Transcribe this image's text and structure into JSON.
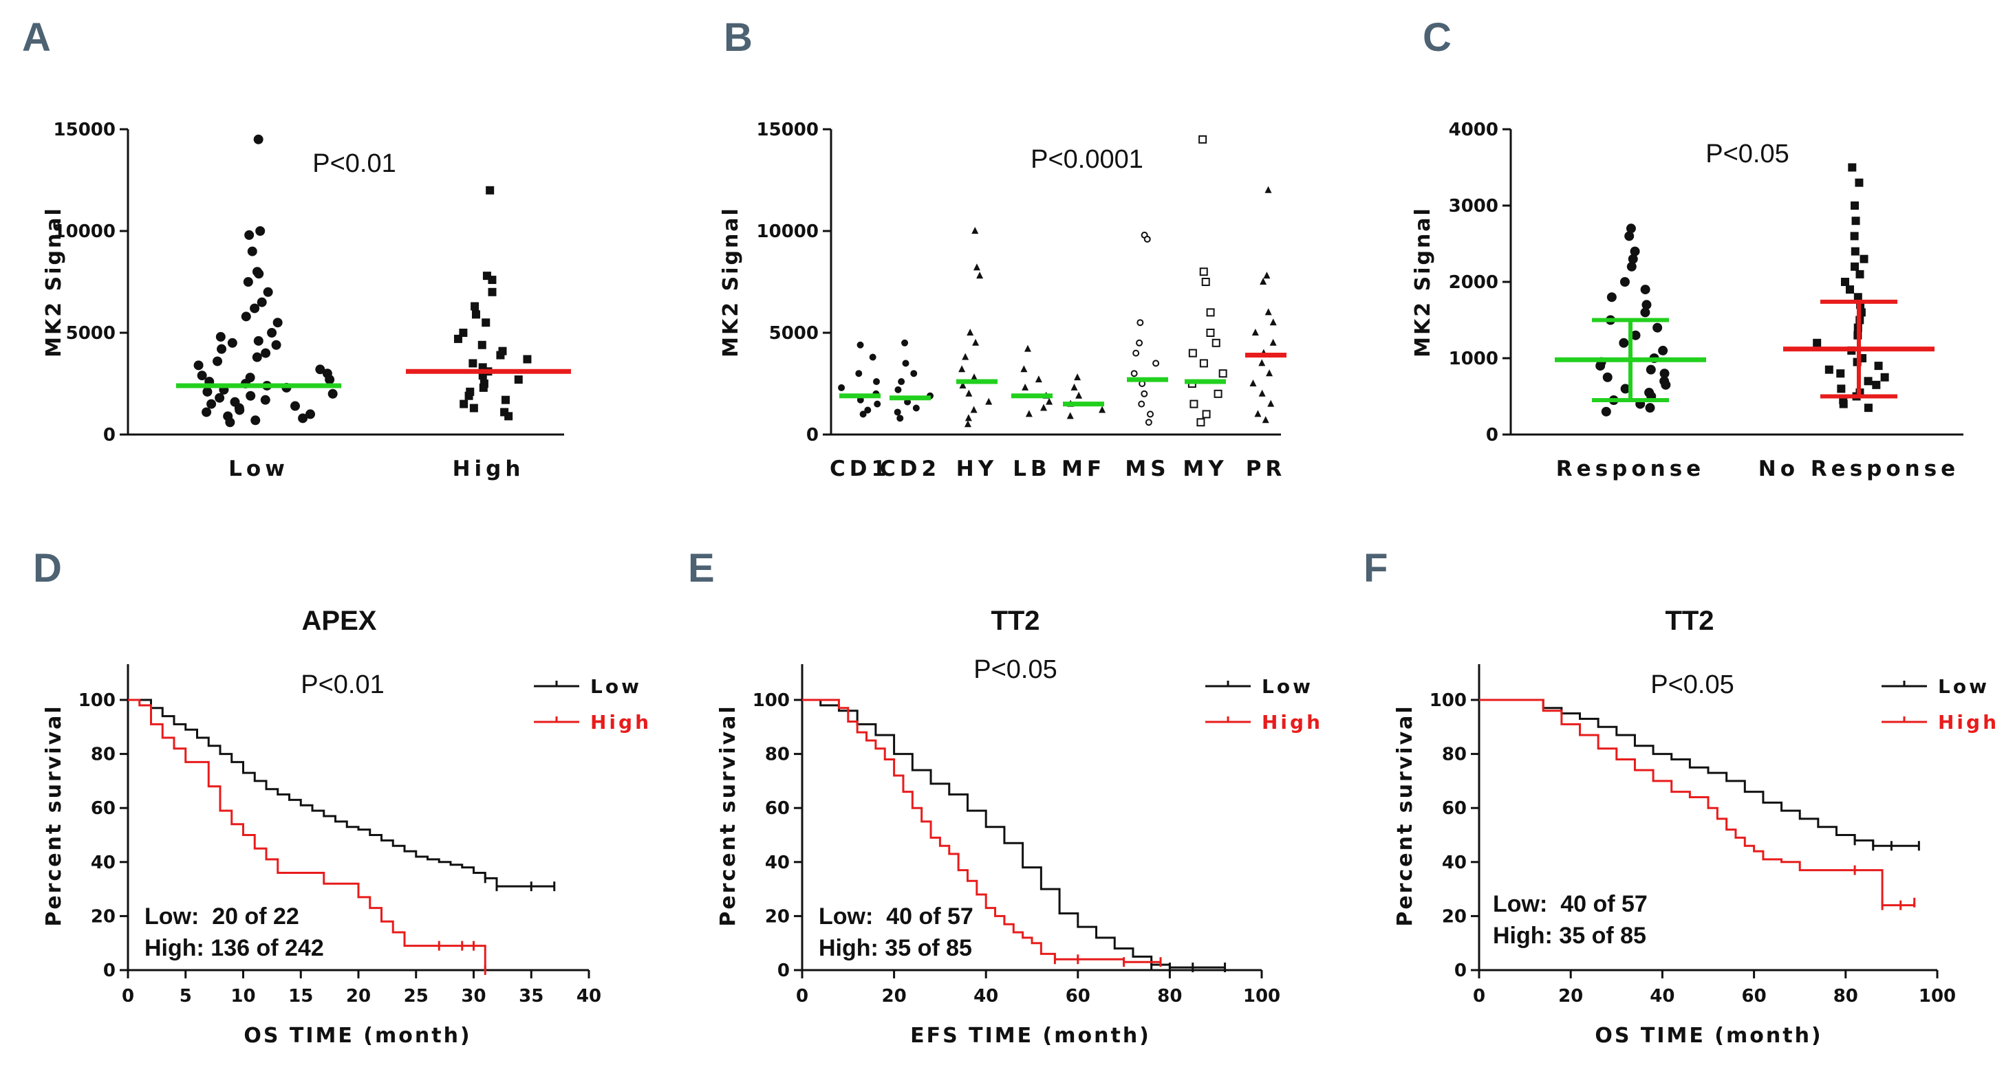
{
  "colors": {
    "black": "#111111",
    "green": "#22d01e",
    "red": "#e81c1c",
    "panel_label": "#4d6272"
  },
  "chart_data": [
    {
      "panel": "A",
      "type": "scatter",
      "ylabel": "MK2 Signal",
      "ylim": [
        0,
        15000
      ],
      "yticks": [
        "0",
        "5000",
        "10000",
        "15000"
      ],
      "p_value": "P<0.01",
      "categories": [
        "Low",
        "High"
      ],
      "means": [
        2400,
        3100
      ],
      "mean_colors": [
        "#22d01e",
        "#e81c1c"
      ],
      "points": [
        [
          14500,
          10000,
          9800,
          9000,
          8000,
          7900,
          7500,
          7000,
          6500,
          6200,
          5800,
          5500,
          5000,
          4800,
          4600,
          4500,
          4400,
          4200,
          4000,
          3800,
          3600,
          3400,
          3200,
          3000,
          2900,
          2800,
          2700,
          2600,
          2500,
          2400,
          2300,
          2200,
          2100,
          2000,
          1900,
          1800,
          1700,
          1600,
          1500,
          1400,
          1300,
          1200,
          1100,
          1000,
          900,
          800,
          700,
          600
        ],
        [
          12000,
          7800,
          7600,
          7000,
          6300,
          5900,
          5500,
          5000,
          4700,
          4400,
          4100,
          3900,
          3700,
          3500,
          3300,
          3100,
          2900,
          2700,
          2500,
          2300,
          2100,
          1900,
          1700,
          1500,
          1300,
          1100,
          900
        ]
      ]
    },
    {
      "panel": "B",
      "type": "scatter",
      "ylabel": "MK2 Signal",
      "ylim": [
        0,
        15000
      ],
      "yticks": [
        "0",
        "5000",
        "10000",
        "15000"
      ],
      "p_value": "P<0.0001",
      "categories": [
        "CD1",
        "CD2",
        "HY",
        "LB",
        "MF",
        "MS",
        "MY",
        "PR"
      ],
      "means": [
        1900,
        1800,
        2600,
        1900,
        1500,
        2700,
        2600,
        3900
      ],
      "mean_colors": [
        "#22d01e",
        "#22d01e",
        "#22d01e",
        "#22d01e",
        "#22d01e",
        "#22d01e",
        "#22d01e",
        "#e81c1c"
      ],
      "points": [
        [
          4400,
          3800,
          3000,
          2600,
          2300,
          2000,
          1700,
          1500,
          1200,
          1000
        ],
        [
          4500,
          3500,
          3000,
          2600,
          2200,
          1900,
          1600,
          1300,
          1100,
          800
        ],
        [
          10000,
          8200,
          7800,
          5000,
          4500,
          3800,
          3200,
          2800,
          2400,
          2000,
          1600,
          1200,
          800,
          500
        ],
        [
          4200,
          3200,
          2700,
          2300,
          1900,
          1600,
          1300,
          1000
        ],
        [
          2800,
          2300,
          1900,
          1500,
          1200,
          900
        ],
        [
          9800,
          9600,
          5500,
          4500,
          4000,
          3500,
          3000,
          2500,
          2000,
          1500,
          1000,
          600
        ],
        [
          14500,
          8000,
          7500,
          6000,
          5000,
          4500,
          4000,
          3500,
          3000,
          2500,
          2000,
          1500,
          1000,
          600
        ],
        [
          12000,
          7800,
          7500,
          6000,
          5500,
          5000,
          4500,
          4000,
          3500,
          3000,
          2500,
          2000,
          1500,
          1000,
          700
        ]
      ]
    },
    {
      "panel": "C",
      "type": "scatter",
      "ylabel": "MK2 Signal",
      "ylim": [
        0,
        4000
      ],
      "yticks": [
        "0",
        "1000",
        "2000",
        "3000",
        "4000"
      ],
      "p_value": "P<0.05",
      "categories": [
        "Response",
        "No Response"
      ],
      "means": [
        980,
        1120
      ],
      "sd_low": [
        450,
        500
      ],
      "sd_high": [
        1500,
        1740
      ],
      "mean_colors": [
        "#22d01e",
        "#e81c1c"
      ],
      "points": [
        [
          2700,
          2600,
          2400,
          2300,
          2200,
          2000,
          1900,
          1800,
          1700,
          1600,
          1500,
          1400,
          1300,
          1200,
          1100,
          1000,
          950,
          900,
          850,
          800,
          750,
          700,
          650,
          600,
          550,
          500,
          450,
          400,
          350,
          300
        ],
        [
          3500,
          3300,
          3000,
          2800,
          2600,
          2400,
          2300,
          2200,
          2100,
          2000,
          1900,
          1800,
          1700,
          1600,
          1500,
          1400,
          1300,
          1200,
          1100,
          1000,
          950,
          900,
          850,
          800,
          750,
          700,
          650,
          600,
          550,
          500,
          450,
          400,
          350
        ]
      ]
    },
    {
      "panel": "D",
      "type": "line",
      "title": "APEX",
      "xlabel": "OS TIME (month)",
      "ylabel": "Percent survival",
      "xlim": [
        0,
        40
      ],
      "ylim": [
        0,
        100
      ],
      "xticks": [
        "0",
        "5",
        "10",
        "15",
        "20",
        "25",
        "30",
        "35",
        "40"
      ],
      "yticks": [
        "0",
        "20",
        "40",
        "60",
        "80",
        "100"
      ],
      "p_value": "P<0.01",
      "legend": [
        "Low",
        "High"
      ],
      "annotation": [
        "Low:  20 of 22",
        "High: 136 of 242"
      ],
      "series": [
        {
          "name": "Low",
          "color": "#111111",
          "x": [
            0,
            2,
            3,
            4,
            5,
            6,
            7,
            8,
            9,
            10,
            11,
            12,
            13,
            14,
            15,
            16,
            17,
            18,
            19,
            20,
            21,
            22,
            23,
            24,
            25,
            26,
            27,
            28,
            29,
            30,
            31,
            32,
            35,
            37
          ],
          "y": [
            100,
            97,
            94,
            91,
            89,
            86,
            83,
            80,
            77,
            73,
            70,
            67,
            65,
            63,
            61,
            59,
            57,
            55,
            53,
            52,
            50,
            48,
            46,
            44,
            42,
            41,
            40,
            39,
            38,
            36,
            34,
            31,
            31,
            31
          ]
        },
        {
          "name": "High",
          "color": "#e81c1c",
          "x": [
            0,
            1,
            2,
            3,
            4,
            5,
            7,
            8,
            9,
            10,
            11,
            12,
            13,
            15,
            17,
            20,
            21,
            22,
            23,
            24,
            27,
            29,
            30,
            31
          ],
          "y": [
            100,
            98,
            91,
            86,
            82,
            77,
            68,
            59,
            54,
            50,
            45,
            41,
            36,
            36,
            32,
            27,
            23,
            18,
            14,
            9,
            9,
            9,
            9,
            0
          ]
        }
      ]
    },
    {
      "panel": "E",
      "type": "line",
      "title": "TT2",
      "xlabel": "EFS TIME (month)",
      "ylabel": "Percent survival",
      "xlim": [
        0,
        100
      ],
      "ylim": [
        0,
        100
      ],
      "xticks": [
        "0",
        "20",
        "40",
        "60",
        "80",
        "100"
      ],
      "yticks": [
        "0",
        "20",
        "40",
        "60",
        "80",
        "100"
      ],
      "p_value": "P<0.05",
      "legend": [
        "Low",
        "High"
      ],
      "annotation": [
        "Low:  40 of 57",
        "High: 35 of 85"
      ],
      "series": [
        {
          "name": "Low",
          "color": "#111111",
          "x": [
            0,
            4,
            8,
            12,
            16,
            20,
            24,
            28,
            32,
            36,
            40,
            44,
            48,
            52,
            56,
            60,
            64,
            68,
            72,
            76,
            80,
            85,
            92
          ],
          "y": [
            100,
            98,
            96,
            91,
            87,
            80,
            74,
            69,
            65,
            59,
            53,
            47,
            38,
            30,
            21,
            16,
            12,
            8,
            5,
            2,
            1,
            1,
            1
          ]
        },
        {
          "name": "High",
          "color": "#e81c1c",
          "x": [
            0,
            6,
            8,
            10,
            12,
            14,
            16,
            18,
            20,
            22,
            24,
            26,
            28,
            30,
            32,
            34,
            36,
            38,
            40,
            42,
            44,
            46,
            48,
            50,
            52,
            55,
            60,
            70,
            78
          ],
          "y": [
            100,
            100,
            97,
            92,
            88,
            85,
            82,
            78,
            72,
            66,
            60,
            55,
            49,
            46,
            43,
            37,
            33,
            28,
            23,
            20,
            17,
            14,
            12,
            10,
            6,
            4,
            4,
            3,
            3
          ]
        }
      ]
    },
    {
      "panel": "F",
      "type": "line",
      "title": "TT2",
      "xlabel": "OS TIME (month)",
      "ylabel": "Percent survival",
      "xlim": [
        0,
        100
      ],
      "ylim": [
        0,
        100
      ],
      "xticks": [
        "0",
        "20",
        "40",
        "60",
        "80",
        "100"
      ],
      "yticks": [
        "0",
        "20",
        "40",
        "60",
        "80",
        "100"
      ],
      "p_value": "P<0.05",
      "legend": [
        "Low",
        "High"
      ],
      "annotation": [
        "Low:  40 of 57",
        "High: 35 of 85"
      ],
      "series": [
        {
          "name": "Low",
          "color": "#111111",
          "x": [
            0,
            10,
            14,
            18,
            22,
            26,
            30,
            34,
            38,
            42,
            46,
            50,
            54,
            58,
            62,
            66,
            70,
            74,
            78,
            82,
            86,
            90,
            96
          ],
          "y": [
            100,
            100,
            97,
            95,
            93,
            90,
            87,
            83,
            80,
            78,
            75,
            73,
            70,
            66,
            62,
            59,
            56,
            53,
            50,
            48,
            46,
            46,
            46
          ]
        },
        {
          "name": "High",
          "color": "#e81c1c",
          "x": [
            0,
            10,
            14,
            18,
            22,
            26,
            30,
            34,
            38,
            42,
            46,
            50,
            52,
            54,
            56,
            58,
            60,
            62,
            66,
            70,
            76,
            82,
            88,
            92,
            95
          ],
          "y": [
            100,
            100,
            96,
            91,
            87,
            82,
            78,
            74,
            70,
            66,
            64,
            60,
            56,
            52,
            49,
            46,
            44,
            41,
            40,
            37,
            37,
            37,
            24,
            24,
            25
          ]
        }
      ]
    }
  ]
}
